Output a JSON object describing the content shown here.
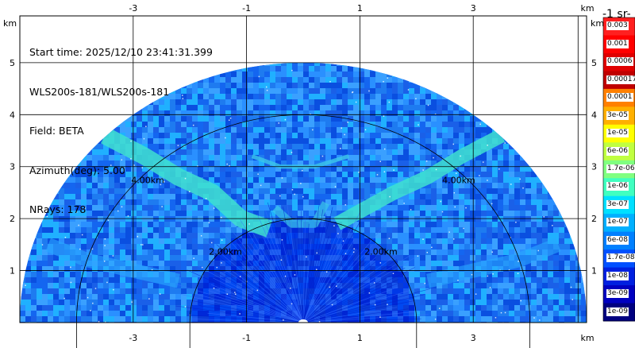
{
  "info": {
    "lines": [
      "Start time: 2025/12/10 23:41:31.399",
      "WLS200s-181/WLS200s-181",
      "Field: BETA",
      "Azimuth(deg): 5.00",
      "NRays: 178"
    ]
  },
  "chart_data": {
    "type": "heatmap",
    "projection": "RHI polar sector (range-height indicator)",
    "axes": {
      "x_unit_label": "km",
      "y_unit_label": "km",
      "x_ticks": [
        -3,
        -1,
        1,
        3
      ],
      "y_ticks": [
        1,
        2,
        3,
        4,
        5
      ],
      "x_range": [
        -5.0,
        5.0
      ],
      "y_range": [
        0.0,
        5.9
      ],
      "grid": true
    },
    "range_rings": [
      {
        "range_km": 2.0,
        "label": "2.00km"
      },
      {
        "range_km": 4.0,
        "label": "4.00km"
      }
    ],
    "max_range_km": 5.0,
    "colorbar": {
      "title_visible_fragment": "-1 sr-",
      "scale": "log",
      "tick_labels": [
        "0.003",
        "0.001",
        "0.0006",
        "0.00017",
        "0.0001",
        "3e-05",
        "1e-05",
        "6e-06",
        "1.7e-06",
        "1e-06",
        "3e-07",
        "1e-07",
        "6e-08",
        "1.7e-08",
        "1e-08",
        "3e-09",
        "1e-09"
      ],
      "colors": [
        "#ff2020",
        "#ff0000",
        "#e00000",
        "#c00000",
        "#ff8000",
        "#ffb000",
        "#ffff00",
        "#c0ff40",
        "#80ff80",
        "#40ffc0",
        "#00e0ff",
        "#00b0ff",
        "#0080ff",
        "#0050ff",
        "#0020e0",
        "#0000c0",
        "#000080"
      ]
    },
    "features": [
      {
        "description": "aerosol/cloud layer at about 3 km height",
        "height_km": 3.0,
        "level": "1e-07"
      },
      {
        "description": "boundary layer top rising to about 2 km near center",
        "height_km": 2.0,
        "level": "3e-07"
      },
      {
        "description": "near-surface weak returns",
        "height_km": 0.5,
        "level": "1e-08"
      }
    ]
  }
}
